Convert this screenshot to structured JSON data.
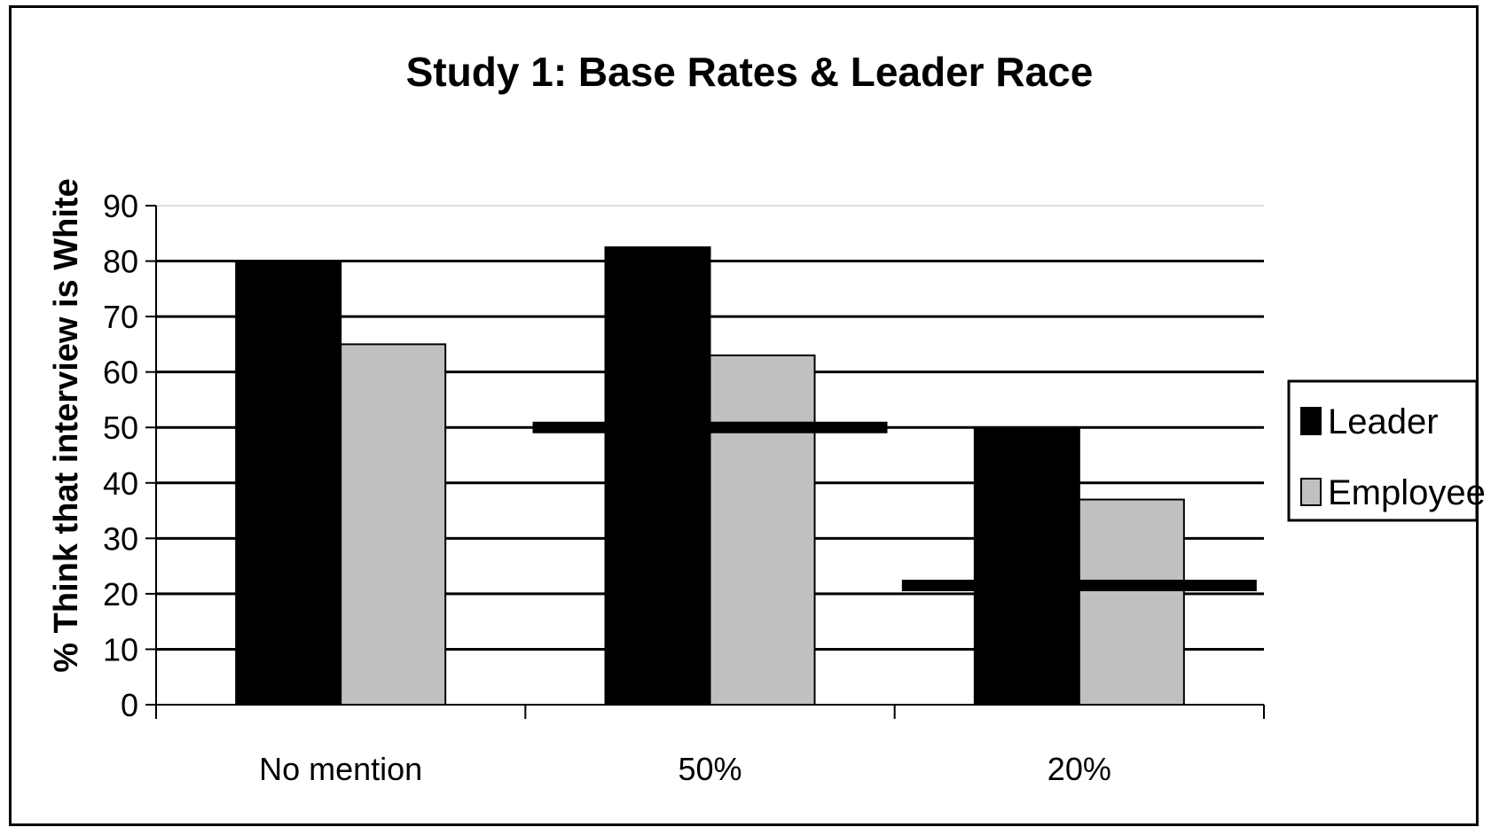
{
  "chart_data": {
    "type": "bar",
    "title": "Study 1: Base Rates & Leader Race",
    "xlabel": "",
    "ylabel": "% Think that interview is White",
    "categories": [
      "No mention",
      "50%",
      "20%"
    ],
    "series": [
      {
        "name": "Leader",
        "color": "#000000",
        "values": [
          80,
          82.5,
          50
        ]
      },
      {
        "name": "Employee",
        "color": "#c0c0c0",
        "values": [
          65,
          63,
          37
        ]
      }
    ],
    "reference_lines": [
      {
        "category": "50%",
        "value": 50
      },
      {
        "category": "20%",
        "value": 21.5
      }
    ],
    "ylim": [
      0,
      90
    ],
    "yticks": [
      0,
      10,
      20,
      30,
      40,
      50,
      60,
      70,
      80,
      90
    ],
    "grid": true,
    "legend_position": "right"
  }
}
